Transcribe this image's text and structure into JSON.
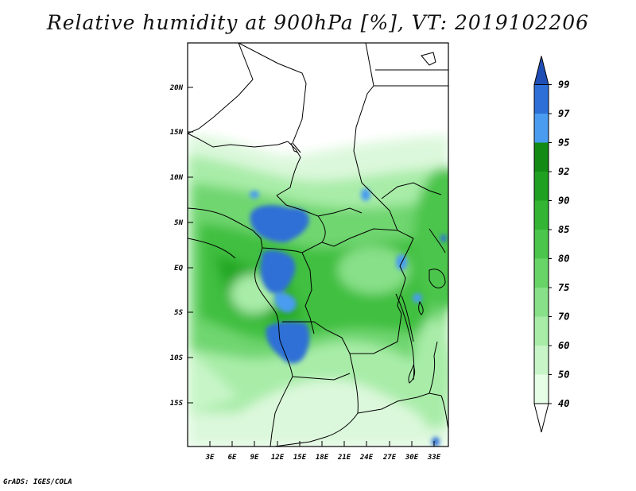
{
  "title": "Relative humidity at 900hPa [%], VT: 2019102206",
  "credit": "GrADS: IGES/COLA",
  "axes": {
    "lat_ticks": [
      "20N",
      "15N",
      "10N",
      "5N",
      "EQ",
      "5S",
      "10S",
      "15S"
    ],
    "lon_ticks": [
      "3E",
      "6E",
      "9E",
      "12E",
      "15E",
      "18E",
      "21E",
      "24E",
      "27E",
      "30E",
      "33E"
    ]
  },
  "colorbar": {
    "levels": [
      "40",
      "50",
      "60",
      "70",
      "75",
      "80",
      "85",
      "90",
      "92",
      "95",
      "97",
      "99"
    ],
    "colors": [
      "#ffffff",
      "#e6fde6",
      "#c8f5c8",
      "#a8eca8",
      "#88e088",
      "#68d468",
      "#4bc54b",
      "#33b533",
      "#20a020",
      "#138a13",
      "#4a9cf0",
      "#2d6fd6",
      "#1f4fb4"
    ]
  }
}
